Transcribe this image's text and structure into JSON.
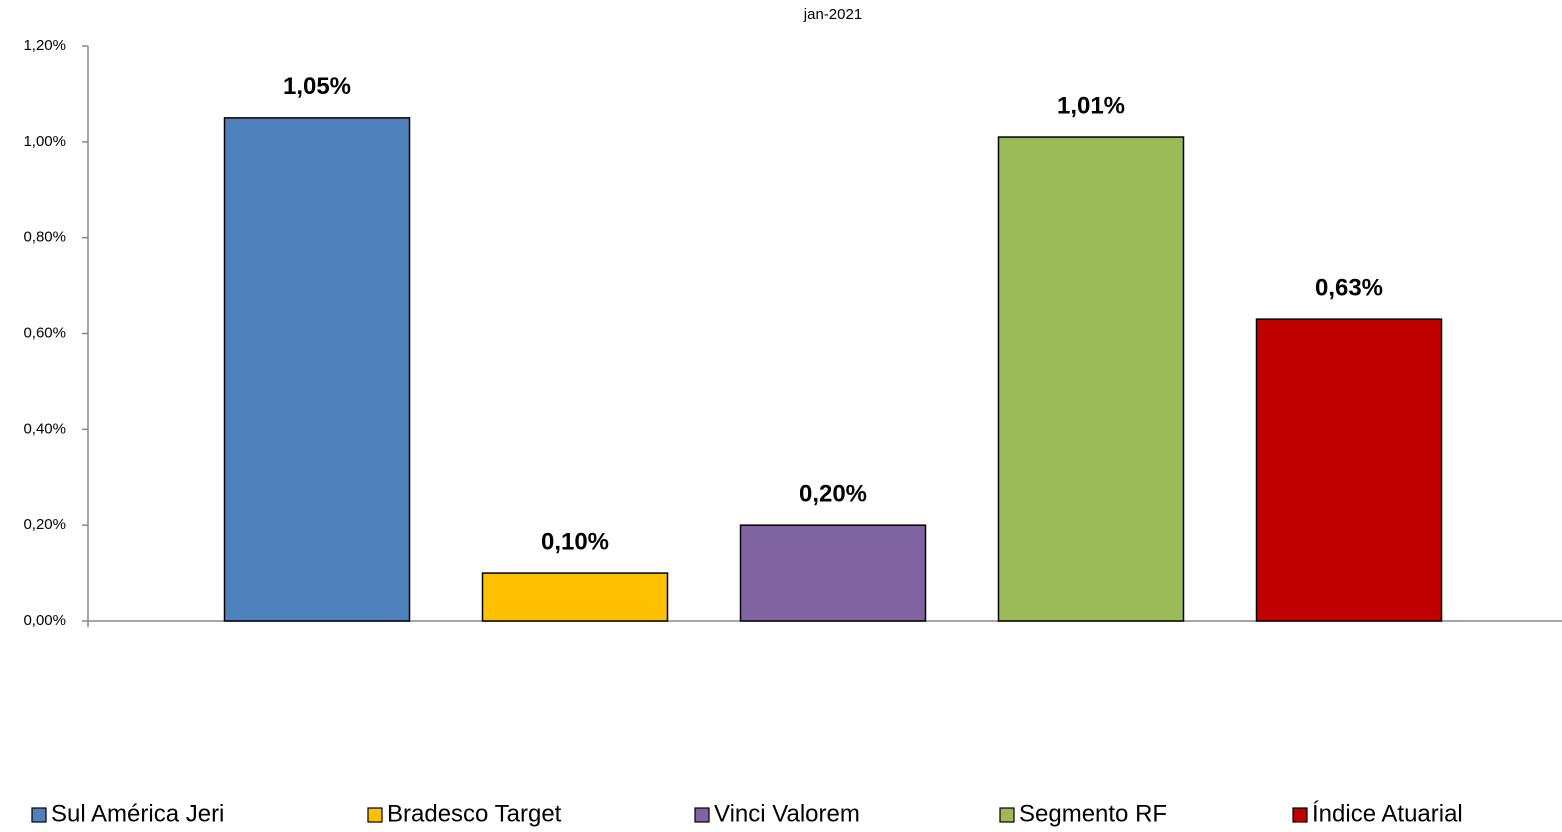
{
  "chart_data": {
    "type": "bar",
    "categories": [
      "jan-2021"
    ],
    "series": [
      {
        "name": "Sul América Jeri",
        "color": "#4f81bd",
        "values": [
          1.05
        ],
        "value_labels": [
          "1,05%"
        ]
      },
      {
        "name": "Bradesco Target",
        "color": "#ffc000",
        "values": [
          0.1
        ],
        "value_labels": [
          "0,10%"
        ]
      },
      {
        "name": "Vinci Valorem",
        "color": "#8064a2",
        "values": [
          0.2
        ],
        "value_labels": [
          "0,20%"
        ]
      },
      {
        "name": "Segmento RF",
        "color": "#9bbb59",
        "values": [
          1.01
        ],
        "value_labels": [
          "1,01%"
        ]
      },
      {
        "name": "Índice Atuarial",
        "color": "#c00000",
        "values": [
          0.63
        ],
        "value_labels": [
          "0,63%"
        ]
      }
    ],
    "ylim": [
      0,
      1.2
    ],
    "yticks": [
      {
        "value": 0,
        "label": "0,00%"
      },
      {
        "value": 0.2,
        "label": "0,20%"
      },
      {
        "value": 0.4,
        "label": "0,40%"
      },
      {
        "value": 0.6,
        "label": "0,60%"
      },
      {
        "value": 0.8,
        "label": "0,80%"
      },
      {
        "value": 1.0,
        "label": "1,00%"
      },
      {
        "value": 1.2,
        "label": "1,20%"
      }
    ],
    "legend": "bottom"
  }
}
